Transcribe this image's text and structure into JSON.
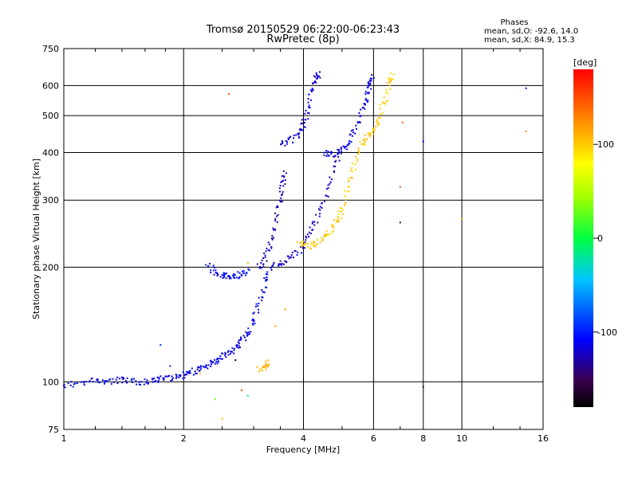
{
  "chart_data": {
    "type": "scatter",
    "title": "Tromsø 20150529 06:22:00-06:23:43",
    "subtitle": "RwPretec (8p)",
    "xlabel": "Frequency [MHz]",
    "ylabel": "Stationary phase Virtual Height [km]",
    "x_scale": "log",
    "y_scale": "log",
    "xlim": [
      1,
      16
    ],
    "ylim": [
      75,
      750
    ],
    "x_ticks": [
      1,
      2,
      4,
      6,
      8,
      10,
      16
    ],
    "x_tick_labels": [
      "1",
      "2",
      "4",
      "6",
      "8",
      "10",
      "16"
    ],
    "y_ticks": [
      75,
      100,
      200,
      300,
      400,
      500,
      600,
      750
    ],
    "y_tick_labels": [
      "75",
      "100",
      "200",
      "300",
      "400",
      "500",
      "600",
      "750"
    ],
    "grid": true,
    "stats": {
      "header": "Phases",
      "line_o": "mean, sd,O: -92.6, 14.0",
      "line_x": "mean, sd,X:  84.9, 15.3"
    },
    "colorbar": {
      "label": "[deg]",
      "min": -180,
      "max": 180,
      "ticks": [
        100,
        0,
        -100
      ],
      "tick_labels": [
        "100",
        "0",
        "-100"
      ]
    },
    "traces": [
      {
        "phase": -110,
        "points": [
          [
            1.0,
            98
          ],
          [
            1.1,
            99
          ],
          [
            1.2,
            101
          ],
          [
            1.3,
            100
          ],
          [
            1.4,
            101
          ],
          [
            1.5,
            100
          ],
          [
            1.6,
            100
          ],
          [
            1.7,
            101
          ],
          [
            1.8,
            102
          ],
          [
            1.9,
            103
          ],
          [
            2.0,
            104
          ],
          [
            2.1,
            106
          ],
          [
            2.2,
            108
          ],
          [
            2.3,
            110
          ],
          [
            2.4,
            113
          ],
          [
            2.5,
            116
          ],
          [
            2.6,
            119
          ],
          [
            2.7,
            123
          ],
          [
            2.8,
            128
          ],
          [
            2.9,
            135
          ],
          [
            3.0,
            145
          ],
          [
            3.1,
            160
          ],
          [
            3.2,
            180
          ],
          [
            3.25,
            195
          ]
        ]
      },
      {
        "phase": -105,
        "points": [
          [
            2.3,
            205
          ],
          [
            2.4,
            192
          ],
          [
            2.5,
            190
          ],
          [
            2.6,
            190
          ],
          [
            2.7,
            190
          ],
          [
            2.8,
            191
          ],
          [
            2.9,
            195
          ]
        ]
      },
      {
        "phase": -125,
        "points": [
          [
            3.1,
            200
          ],
          [
            3.2,
            210
          ],
          [
            3.3,
            230
          ],
          [
            3.4,
            260
          ],
          [
            3.5,
            300
          ],
          [
            3.55,
            330
          ],
          [
            3.6,
            360
          ]
        ]
      },
      {
        "phase": -120,
        "points": [
          [
            3.3,
            200
          ],
          [
            3.5,
            205
          ],
          [
            3.7,
            210
          ],
          [
            3.9,
            220
          ],
          [
            4.1,
            240
          ],
          [
            4.3,
            265
          ],
          [
            4.5,
            295
          ],
          [
            4.7,
            340
          ],
          [
            4.9,
            400
          ]
        ]
      },
      {
        "phase": -118,
        "points": [
          [
            3.5,
            420
          ],
          [
            3.7,
            430
          ],
          [
            3.9,
            445
          ],
          [
            4.0,
            470
          ],
          [
            4.1,
            520
          ],
          [
            4.2,
            580
          ],
          [
            4.3,
            630
          ],
          [
            4.4,
            640
          ]
        ]
      },
      {
        "phase": -115,
        "points": [
          [
            4.5,
            400
          ],
          [
            4.7,
            395
          ],
          [
            4.9,
            400
          ],
          [
            5.1,
            410
          ],
          [
            5.3,
            440
          ],
          [
            5.5,
            480
          ],
          [
            5.7,
            530
          ],
          [
            5.8,
            570
          ],
          [
            5.9,
            610
          ],
          [
            6.0,
            640
          ]
        ]
      },
      {
        "phase": 100,
        "points": [
          [
            3.9,
            230
          ],
          [
            4.1,
            226
          ],
          [
            4.3,
            230
          ],
          [
            4.5,
            240
          ],
          [
            4.7,
            252
          ],
          [
            4.9,
            268
          ],
          [
            5.0,
            285
          ],
          [
            5.2,
            330
          ],
          [
            5.4,
            380
          ],
          [
            5.6,
            420
          ],
          [
            5.8,
            440
          ],
          [
            6.0,
            455
          ],
          [
            6.2,
            490
          ],
          [
            6.4,
            550
          ],
          [
            6.6,
            620
          ],
          [
            6.7,
            640
          ]
        ]
      },
      {
        "phase": 110,
        "points": [
          [
            3.1,
            108
          ],
          [
            3.2,
            110
          ],
          [
            3.3,
            112
          ]
        ]
      }
    ],
    "scatter_points": [
      {
        "x": 2.6,
        "y": 570,
        "phase": 150
      },
      {
        "x": 7.0,
        "y": 325,
        "phase": 150
      },
      {
        "x": 7.0,
        "y": 262,
        "phase": -150
      },
      {
        "x": 8.0,
        "y": 428,
        "phase": -110
      },
      {
        "x": 8.0,
        "y": 97,
        "phase": -150
      },
      {
        "x": 10.0,
        "y": 268,
        "phase": 110
      },
      {
        "x": 14.5,
        "y": 590,
        "phase": -100
      },
      {
        "x": 14.5,
        "y": 455,
        "phase": 130
      },
      {
        "x": 7.1,
        "y": 480,
        "phase": 140
      },
      {
        "x": 3.6,
        "y": 155,
        "phase": 120
      },
      {
        "x": 3.4,
        "y": 140,
        "phase": 120
      },
      {
        "x": 2.7,
        "y": 114,
        "phase": -170
      },
      {
        "x": 2.5,
        "y": 80,
        "phase": 110
      },
      {
        "x": 2.8,
        "y": 95,
        "phase": 160
      },
      {
        "x": 2.4,
        "y": 90,
        "phase": 30
      },
      {
        "x": 2.9,
        "y": 92,
        "phase": -10
      },
      {
        "x": 2.2,
        "y": 105,
        "phase": 100
      },
      {
        "x": 1.75,
        "y": 125,
        "phase": -90
      },
      {
        "x": 1.85,
        "y": 110,
        "phase": -100
      },
      {
        "x": 2.9,
        "y": 205,
        "phase": 110
      }
    ]
  }
}
